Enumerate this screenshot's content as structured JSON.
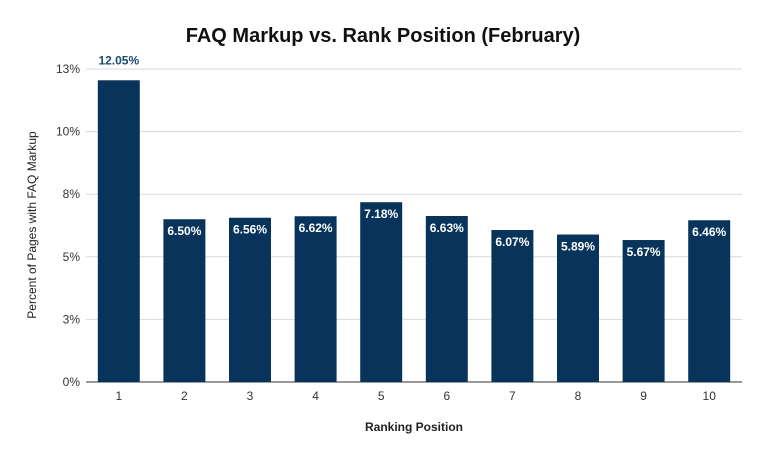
{
  "chart_data": {
    "type": "bar",
    "title": "FAQ Markup vs. Rank Position (February)",
    "xlabel": "Ranking Position",
    "ylabel": "Percent of Pages with FAQ Markup",
    "categories": [
      "1",
      "2",
      "3",
      "4",
      "5",
      "6",
      "7",
      "8",
      "9",
      "10"
    ],
    "values": [
      12.05,
      6.5,
      6.56,
      6.62,
      7.18,
      6.63,
      6.07,
      5.89,
      5.67,
      6.46
    ],
    "data_labels": [
      "12.05%",
      "6.50%",
      "6.56%",
      "6.62%",
      "7.18%",
      "6.63%",
      "6.07%",
      "5.89%",
      "5.67%",
      "6.46%"
    ],
    "ylim": [
      0,
      12.5
    ],
    "yticks": [
      0,
      2.5,
      5,
      7.5,
      10,
      12.5
    ],
    "ytick_labels": [
      "0%",
      "3%",
      "5%",
      "8%",
      "10%",
      "13%"
    ],
    "grid": true,
    "legend": "none",
    "colors": {
      "bar": "#08345c",
      "label_inside": "#ffffff",
      "label_outside": "#1a4a72"
    }
  }
}
